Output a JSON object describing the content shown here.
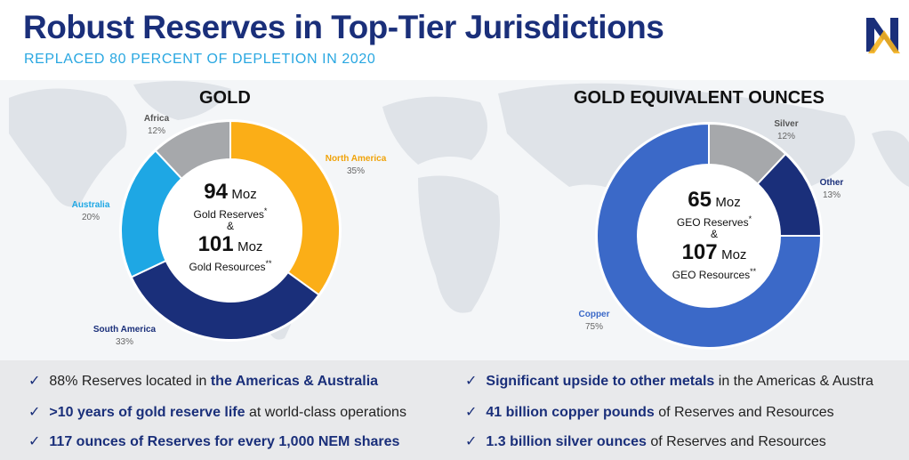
{
  "header": {
    "title": "Robust Reserves in Top-Tier Jurisdictions",
    "subtitle": "REPLACED 80 PERCENT OF DEPLETION IN 2020"
  },
  "logo": {
    "icon": "newmont-n-logo-icon",
    "color_primary": "#1a2f7a",
    "color_accent": "#f5b21f"
  },
  "chart_data": [
    {
      "type": "pie",
      "title": "GOLD",
      "categories": [
        "North America",
        "South America",
        "Australia",
        "Africa"
      ],
      "values": [
        35,
        33,
        20,
        12
      ],
      "value_labels": [
        "35%",
        "33%",
        "20%",
        "12%"
      ],
      "colors": [
        "#fbae17",
        "#1a2f7a",
        "#1ea7e4",
        "#a6a8ab"
      ],
      "label_colors": [
        "#f0a30a",
        "#1a2f7a",
        "#1ea7e4",
        "#555555"
      ],
      "center": {
        "line1_value": "94",
        "line1_unit": "Moz",
        "line1_desc": "Gold Reserves",
        "line1_mark": "*",
        "joiner": "&",
        "line2_value": "101",
        "line2_unit": "Moz",
        "line2_desc": "Gold Resources",
        "line2_mark": "**"
      }
    },
    {
      "type": "pie",
      "title": "GOLD EQUIVALENT OUNCES",
      "categories": [
        "Silver",
        "Other",
        "Copper"
      ],
      "values": [
        12,
        13,
        75
      ],
      "value_labels": [
        "12%",
        "13%",
        "75%"
      ],
      "colors": [
        "#a6a8ab",
        "#1a2f7a",
        "#3b69c8"
      ],
      "label_colors": [
        "#555555",
        "#1a2f7a",
        "#3b69c8"
      ],
      "center": {
        "line1_value": "65",
        "line1_unit": "Moz",
        "line1_desc": "GEO Reserves",
        "line1_mark": "*",
        "joiner": "&",
        "line2_value": "107",
        "line2_unit": "Moz",
        "line2_desc": "GEO Resources",
        "line2_mark": "**"
      }
    }
  ],
  "bullets": {
    "left": [
      {
        "pre": "88% Reserves located in ",
        "bold": "the Americas & Australia",
        "post": ""
      },
      {
        "pre": "",
        "bold": ">10 years of gold reserve life",
        "post": " at world-class operations"
      },
      {
        "pre": "",
        "bold": "117 ounces of Reserves for every 1,000 NEM shares",
        "post": ""
      }
    ],
    "right": [
      {
        "pre": "",
        "bold": "Significant upside to other metals",
        "post": " in the Americas & Austra"
      },
      {
        "pre": "",
        "bold": "41 billion copper pounds",
        "post": " of Reserves and Resources"
      },
      {
        "pre": "",
        "bold": "1.3 billion silver ounces",
        "post": " of Reserves and Resources"
      }
    ],
    "check_glyph": "✓"
  }
}
